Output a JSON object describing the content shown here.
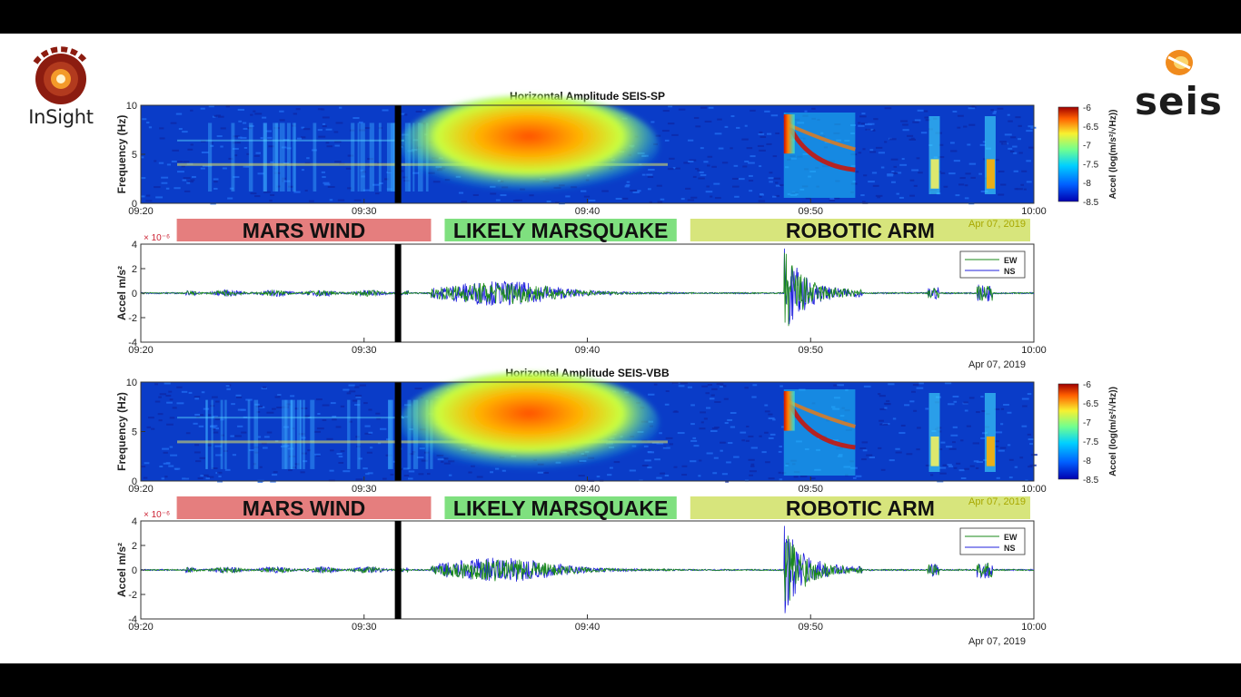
{
  "logos": {
    "left": {
      "text": "InSight"
    },
    "right": {
      "text": "seis"
    }
  },
  "colors": {
    "wind": "#e57e7e",
    "quake": "#7fe07f",
    "arm": "#d7e57c",
    "ew": "#1a8a1a",
    "ns": "#2020dd"
  },
  "chart_data": [
    {
      "type": "heatmap",
      "title": "Horizontal Amplitude SEIS-SP",
      "ylabel": "Frequency (Hz)",
      "ylim": [
        0,
        10
      ],
      "yticks": [
        "0",
        "5",
        "10"
      ],
      "xticks": [
        "09:20",
        "09:30",
        "09:40",
        "09:50",
        "10:00"
      ],
      "xlim": [
        "09:20",
        "10:00"
      ],
      "colorbar": {
        "label": "Accel (log(m/s²/√Hz))",
        "ticks": [
          "-6",
          "-6.5",
          "-7",
          "-7.5",
          "-8",
          "-8.5"
        ],
        "range": [
          -8.5,
          -6
        ]
      },
      "events": [
        {
          "label": "MARS WIND",
          "start": "09:21",
          "end": "09:33"
        },
        {
          "label": "LIKELY MARSQUAKE",
          "start": "09:33",
          "end": "09:44"
        },
        {
          "label": "ROBOTIC ARM",
          "start": "09:44",
          "end": "10:00"
        }
      ],
      "date_label": "Apr 07, 2019",
      "gap_at": "09:31.5"
    },
    {
      "type": "line",
      "ylabel": "Accel m/s²",
      "multiplier": "× 10⁻⁶",
      "ylim": [
        -4,
        4
      ],
      "yticks": [
        "4",
        "2",
        "0",
        "-2",
        "-4"
      ],
      "xticks": [
        "09:20",
        "09:30",
        "09:40",
        "09:50",
        "10:00"
      ],
      "xlim": [
        "09:20",
        "10:00"
      ],
      "date_label": "Apr 07, 2019",
      "series": [
        {
          "name": "EW"
        },
        {
          "name": "NS"
        }
      ]
    },
    {
      "type": "heatmap",
      "title": "Horizontal Amplitude SEIS-VBB",
      "ylabel": "Frequency (Hz)",
      "ylim": [
        0,
        10
      ],
      "yticks": [
        "0",
        "5",
        "10"
      ],
      "xticks": [
        "09:20",
        "09:30",
        "09:40",
        "09:50",
        "10:00"
      ],
      "xlim": [
        "09:20",
        "10:00"
      ],
      "colorbar": {
        "label": "Accel (log(m/s²/√Hz))",
        "ticks": [
          "-6",
          "-6.5",
          "-7",
          "-7.5",
          "-8",
          "-8.5"
        ],
        "range": [
          -8.5,
          -6
        ]
      },
      "events": [
        {
          "label": "MARS WIND",
          "start": "09:21",
          "end": "09:33"
        },
        {
          "label": "LIKELY MARSQUAKE",
          "start": "09:33",
          "end": "09:44"
        },
        {
          "label": "ROBOTIC ARM",
          "start": "09:44",
          "end": "10:00"
        }
      ],
      "date_label": "Apr 07, 2019",
      "gap_at": "09:31.5"
    },
    {
      "type": "line",
      "ylabel": "Accel m/s²",
      "multiplier": "× 10⁻⁶",
      "ylim": [
        -4,
        4
      ],
      "yticks": [
        "4",
        "2",
        "0",
        "-2",
        "-4"
      ],
      "xticks": [
        "09:20",
        "09:30",
        "09:40",
        "09:50",
        "10:00"
      ],
      "xlim": [
        "09:20",
        "10:00"
      ],
      "date_label": "Apr 07, 2019",
      "series": [
        {
          "name": "EW"
        },
        {
          "name": "NS"
        }
      ]
    }
  ]
}
